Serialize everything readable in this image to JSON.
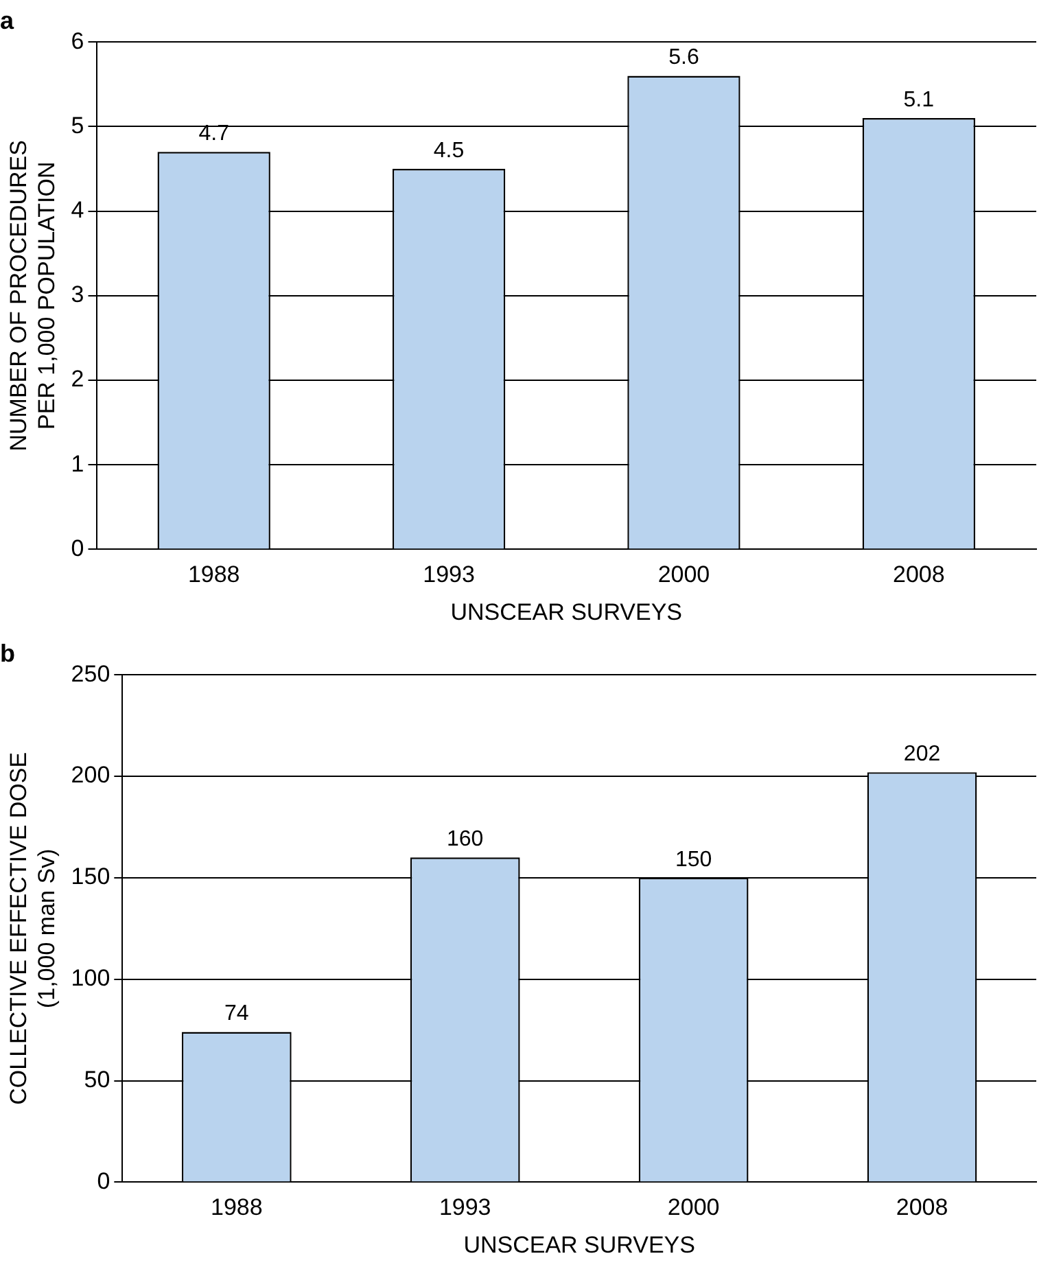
{
  "chart_data": [
    {
      "type": "bar",
      "title": "a",
      "categories": [
        "1988",
        "1993",
        "2000",
        "2008"
      ],
      "values": [
        4.7,
        4.5,
        5.6,
        5.1
      ],
      "color": "#b9d3ee",
      "ylim": [
        0,
        6
      ],
      "yticks": [
        0,
        1,
        2,
        3,
        4,
        5,
        6
      ],
      "grid": "y",
      "data_labels": true,
      "legend": false,
      "xlabel": "UNSCEAR SURVEYS",
      "ylabel": "NUMBER OF PROCEDURES\nPER 1,000 POPULATION"
    },
    {
      "type": "bar",
      "title": "b",
      "categories": [
        "1988",
        "1993",
        "2000",
        "2008"
      ],
      "values": [
        74,
        160,
        150,
        202
      ],
      "color": "#b9d3ee",
      "ylim": [
        0,
        250
      ],
      "yticks": [
        0,
        50,
        100,
        150,
        200,
        250
      ],
      "grid": "y",
      "data_labels": true,
      "legend": false,
      "xlabel": "UNSCEAR SURVEYS",
      "ylabel": "COLLECTIVE EFFECTIVE DOSE\n(1,000 man Sv)"
    }
  ]
}
